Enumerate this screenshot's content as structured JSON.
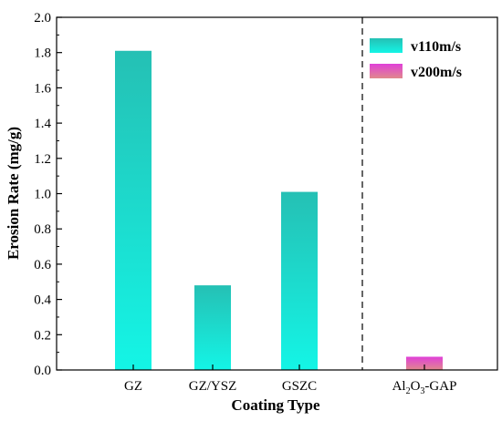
{
  "chart_data": {
    "type": "bar",
    "xlabel": "Coating Type",
    "ylabel": "Erosion Rate (mg/g)",
    "ylim": [
      0,
      2.0
    ],
    "yticks": [
      "0.0",
      "0.2",
      "0.4",
      "0.6",
      "0.8",
      "1.0",
      "1.2",
      "1.4",
      "1.6",
      "1.8",
      "2.0"
    ],
    "categories": [
      {
        "label": "GZ"
      },
      {
        "label": "GZ/YSZ"
      },
      {
        "label": "GSZC"
      },
      {
        "label_parts": [
          "Al",
          "2",
          "O",
          "3",
          "-GAP"
        ]
      }
    ],
    "series": [
      {
        "name": "v110m/s",
        "values": [
          1.81,
          0.48,
          1.01,
          null
        ],
        "color_top": "#25c0b4",
        "color_bottom": "#14f5e6"
      },
      {
        "name": "v200m/s",
        "values": [
          null,
          null,
          null,
          0.075
        ],
        "color_top": "#e040d8",
        "color_bottom": "#e0888c"
      }
    ],
    "separator": "dashed vertical line between GSZC and Al2O3-GAP",
    "legend_position": "top-right",
    "grid": false
  }
}
